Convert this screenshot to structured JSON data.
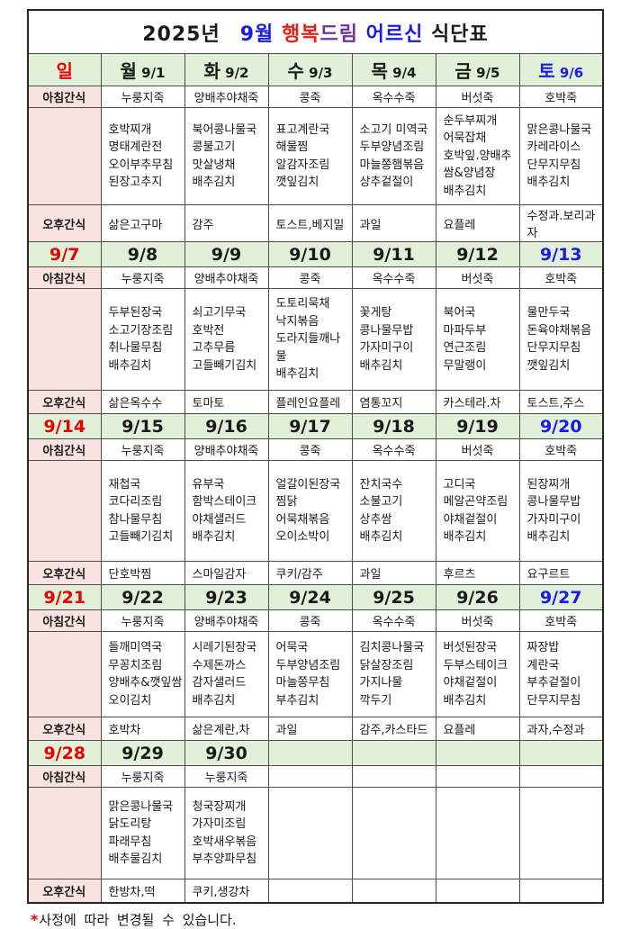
{
  "title": {
    "year": "2025년",
    "month": "9월",
    "brand_red": "행복",
    "brand_purple": "드림",
    "audience": "어르신",
    "suffix": "식단표"
  },
  "header": {
    "sunday": "일",
    "days": [
      {
        "name": "월",
        "date": "9/1",
        "saturday": false
      },
      {
        "name": "화",
        "date": "9/2",
        "saturday": false
      },
      {
        "name": "수",
        "date": "9/3",
        "saturday": false
      },
      {
        "name": "목",
        "date": "9/4",
        "saturday": false
      },
      {
        "name": "금",
        "date": "9/5",
        "saturday": false
      },
      {
        "name": "토",
        "date": "9/6",
        "saturday": true
      }
    ]
  },
  "row_labels": {
    "breakfast": "아침간식",
    "afternoon": "오후간식"
  },
  "weeks": [
    {
      "dates": null,
      "breakfast": [
        "누룽지죽",
        "양배추야채죽",
        "콩죽",
        "옥수수죽",
        "버섯죽",
        "호박죽"
      ],
      "meals": [
        [
          "호박찌개",
          "명태계란전",
          "오이부추무침",
          "된장고추지"
        ],
        [
          "북어콩나물국",
          "콩불고기",
          "맛살냉채",
          "배추김치"
        ],
        [
          "표고계란국",
          "해물찜",
          "알감자조림",
          "깻잎김치"
        ],
        [
          "소고기 미역국",
          "두부양념조림",
          "마늘쫑햄볶음",
          "상추겉절이"
        ],
        [
          "순두부찌개",
          "어묵잡채",
          "호박잎.양배추",
          "쌈&양념장",
          "배추김치"
        ],
        [
          "맑은콩나물국",
          "카레라이스",
          "단무지무침",
          "배추김치"
        ]
      ],
      "afternoon": [
        "삶은고구마",
        "감주",
        "토스트,베지밀",
        "과일",
        "요플레",
        "수정과.보리과자"
      ]
    },
    {
      "dates": [
        "9/7",
        "9/8",
        "9/9",
        "9/10",
        "9/11",
        "9/12",
        "9/13"
      ],
      "breakfast": [
        "누룽지죽",
        "양배추야채죽",
        "콩죽",
        "옥수수죽",
        "버섯죽",
        "호박죽"
      ],
      "meals": [
        [
          "두부된장국",
          "소고기장조림",
          "취나물무침",
          "배추김치"
        ],
        [
          "쇠고기무국",
          "호박전",
          "고추무름",
          "고들빼기김치"
        ],
        [
          "도토리묵채",
          "낙지볶음",
          "도라지들깨나물",
          "배추김치"
        ],
        [
          "꽃게탕",
          "콩나물무밥",
          "가자미구이",
          "배추김치"
        ],
        [
          "북어국",
          "마파두부",
          "연근조림",
          "무말랭이"
        ],
        [
          "물만두국",
          "돈육야채볶음",
          "단무지무침",
          "깻잎김치"
        ]
      ],
      "afternoon": [
        "삶은옥수수",
        "토마토",
        "플레인요플레",
        "염통꼬지",
        "카스테라.차",
        "토스트,주스"
      ]
    },
    {
      "dates": [
        "9/14",
        "9/15",
        "9/16",
        "9/17",
        "9/18",
        "9/19",
        "9/20"
      ],
      "breakfast": [
        "누룽지죽",
        "양배추야채죽",
        "콩죽",
        "옥수수죽",
        "버섯죽",
        "호박죽"
      ],
      "meals": [
        [
          "재첩국",
          "코다리조림",
          "참나물무침",
          "고들빼기김치"
        ],
        [
          "유부국",
          "함박스테이크",
          "야채샐러드",
          "배추김치"
        ],
        [
          "얼갈이된장국",
          "찜닭",
          "어묵채볶음",
          "오이소박이"
        ],
        [
          "잔치국수",
          "소불고기",
          "상추쌈",
          "배추김치"
        ],
        [
          "고디국",
          "메알곤약조림",
          "야채겉절이",
          "배추김치"
        ],
        [
          "된장찌개",
          "콩나물무밥",
          "가자미구이",
          "배추김치"
        ]
      ],
      "afternoon": [
        "단호박찜",
        "스마일감자",
        "쿠키/감주",
        "과일",
        "후르츠",
        "요구르트"
      ]
    },
    {
      "dates": [
        "9/21",
        "9/22",
        "9/23",
        "9/24",
        "9/25",
        "9/26",
        "9/27"
      ],
      "breakfast": [
        "누룽지죽",
        "양배추야채죽",
        "콩죽",
        "옥수수죽",
        "버섯죽",
        "호박죽"
      ],
      "meals": [
        [
          "들깨미역국",
          "무꽁치조림",
          "양배추&깻잎쌈",
          "오이김치"
        ],
        [
          "시레기된장국",
          "수제돈까스",
          "감자샐러드",
          "배추김치"
        ],
        [
          "어묵국",
          "두부양념조림",
          "마늘쫑무침",
          "부추김치"
        ],
        [
          "김치콩나물국",
          "닭살장조림",
          "가지나물",
          "깍두기"
        ],
        [
          "버섯된장국",
          "두부스테이크",
          "야채겉절이",
          "배추김치"
        ],
        [
          "짜장밥",
          "계란국",
          "부추겉절이",
          "단무지무침"
        ]
      ],
      "afternoon": [
        "호박차",
        "삶은계란,차",
        "과일",
        "감주,카스타드",
        "요플레",
        "과자,수정과"
      ]
    },
    {
      "dates": [
        "9/28",
        "9/29",
        "9/30",
        "",
        "",
        "",
        ""
      ],
      "breakfast": [
        "누룽지죽",
        "누룽지죽",
        "",
        "",
        "",
        ""
      ],
      "meals": [
        [
          "맑은콩나물국",
          "닭도리탕",
          "파래무침",
          "배추물김치"
        ],
        [
          "청국장찌개",
          "가자미조림",
          "호박새우볶음",
          "부추양파무침"
        ],
        [],
        [],
        [],
        []
      ],
      "afternoon": [
        "한방차,떡",
        "쿠키,생강차",
        "",
        "",
        "",
        ""
      ]
    }
  ],
  "footer": {
    "asterisk": "*",
    "note": "사정에 따라 변경될 수 있습니다."
  },
  "colors": {
    "header_green": "#e2efd9",
    "label_pink": "#f9e3e1",
    "sunday_red": "#e60000",
    "saturday_blue": "#1a1ae6",
    "brand_red": "#e32119",
    "brand_purple": "#7030a0",
    "border": "#4d4d4d"
  }
}
